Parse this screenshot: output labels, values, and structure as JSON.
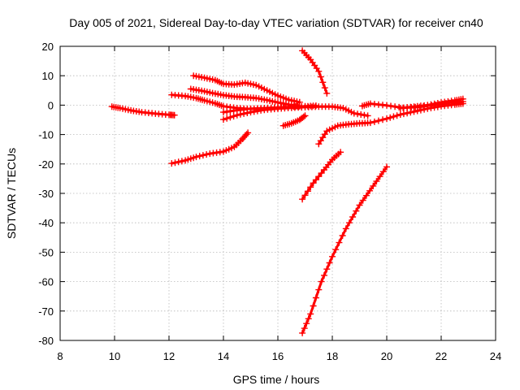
{
  "chart_data": {
    "type": "scatter",
    "title": "Day 005 of 2021, Sidereal Day-to-day VTEC variation (SDTVAR) for receiver cn40",
    "xlabel": "GPS time / hours",
    "ylabel": "SDTVAR / TECUs",
    "xlim": [
      8,
      24
    ],
    "ylim": [
      -80,
      20
    ],
    "x_ticks": [
      8,
      10,
      12,
      14,
      16,
      18,
      20,
      22,
      24
    ],
    "y_ticks": [
      -80,
      -70,
      -60,
      -50,
      -40,
      -30,
      -20,
      -10,
      0,
      10,
      20
    ],
    "grid": true,
    "legend": "none",
    "marker": "plus",
    "color": "#ff0000",
    "series": [
      {
        "x": [
          9.9,
          10.2,
          10.6,
          11.0,
          11.5,
          12.0,
          12.2
        ],
        "y": [
          -0.5,
          -1.0,
          -1.8,
          -2.4,
          -2.9,
          -3.3,
          -3.4
        ]
      },
      {
        "x": [
          12.1,
          12.6,
          13.0,
          13.5,
          14.0,
          14.4,
          14.7,
          14.9
        ],
        "y": [
          -19.8,
          -18.8,
          -17.6,
          -16.5,
          -15.8,
          -14.2,
          -11.5,
          -9.4
        ]
      },
      {
        "x": [
          12.1,
          12.6,
          13.0,
          13.3,
          13.7,
          14.0,
          14.5,
          15.0,
          15.5,
          16.0,
          16.5,
          16.8
        ],
        "y": [
          3.5,
          3.1,
          2.4,
          1.6,
          0.6,
          -0.4,
          -1.0,
          -1.3,
          -1.2,
          -0.9,
          -0.6,
          -0.3
        ]
      },
      {
        "x": [
          12.8,
          13.2,
          13.6,
          14.0,
          14.4,
          14.8,
          15.2,
          15.6,
          16.0,
          16.4,
          16.8
        ],
        "y": [
          5.5,
          4.9,
          4.1,
          3.4,
          2.9,
          2.7,
          2.4,
          1.7,
          0.9,
          0.2,
          -0.4
        ]
      },
      {
        "x": [
          12.9,
          13.3,
          13.7,
          14.0,
          14.4,
          14.8,
          15.2,
          15.6,
          16.0,
          16.4,
          16.8
        ],
        "y": [
          10.0,
          9.3,
          8.5,
          7.2,
          7.0,
          7.6,
          6.8,
          5.0,
          3.2,
          1.8,
          1.0
        ]
      },
      {
        "x": [
          14.0,
          14.5,
          15.0,
          15.5,
          16.0,
          16.5,
          17.0,
          17.5,
          18.0,
          18.4,
          18.8,
          19.3
        ],
        "y": [
          -4.9,
          -3.4,
          -2.4,
          -1.6,
          -1.2,
          -0.9,
          -0.7,
          -0.5,
          -0.5,
          -1.0,
          -2.8,
          -3.6
        ]
      },
      {
        "x": [
          14.0,
          14.5,
          15.0,
          15.5,
          16.0,
          16.5,
          17.0,
          17.4
        ],
        "y": [
          -2.4,
          -1.7,
          -1.2,
          -1.0,
          -0.8,
          -0.6,
          -0.4,
          -0.2
        ]
      },
      {
        "x": [
          16.2,
          16.5,
          16.8,
          17.0
        ],
        "y": [
          -7.0,
          -6.2,
          -5.0,
          -3.6
        ]
      },
      {
        "x": [
          16.9,
          17.2,
          17.5,
          17.8
        ],
        "y": [
          18.5,
          15.5,
          11.5,
          4.0
        ]
      },
      {
        "x": [
          17.5,
          17.8,
          18.2,
          18.6,
          19.0,
          19.4,
          20.0,
          20.5,
          21.0,
          21.5,
          22.0,
          22.5,
          22.8
        ],
        "y": [
          -13.2,
          -8.8,
          -7.0,
          -6.5,
          -6.2,
          -6.0,
          -4.6,
          -3.2,
          -2.2,
          -1.2,
          -0.4,
          0.2,
          0.5
        ]
      },
      {
        "x": [
          16.9,
          17.3,
          17.7,
          18.0,
          18.3
        ],
        "y": [
          -32.0,
          -26.5,
          -22.0,
          -18.5,
          -16.0
        ]
      },
      {
        "x": [
          16.9,
          17.2,
          17.6,
          18.0,
          18.5,
          19.0,
          19.5,
          20.0
        ],
        "y": [
          -77.5,
          -71.0,
          -60.0,
          -51.5,
          -42.0,
          -34.0,
          -27.5,
          -21.0
        ]
      },
      {
        "x": [
          19.1,
          19.4,
          20.0,
          20.6,
          21.2,
          21.8,
          22.3,
          22.8
        ],
        "y": [
          -0.3,
          0.5,
          -0.1,
          -0.9,
          -0.6,
          0.1,
          0.8,
          1.2
        ]
      },
      {
        "x": [
          20.5,
          21.0,
          21.5,
          22.0,
          22.5,
          22.8
        ],
        "y": [
          -1.0,
          -0.5,
          0.0,
          0.9,
          1.6,
          2.1
        ]
      }
    ]
  }
}
